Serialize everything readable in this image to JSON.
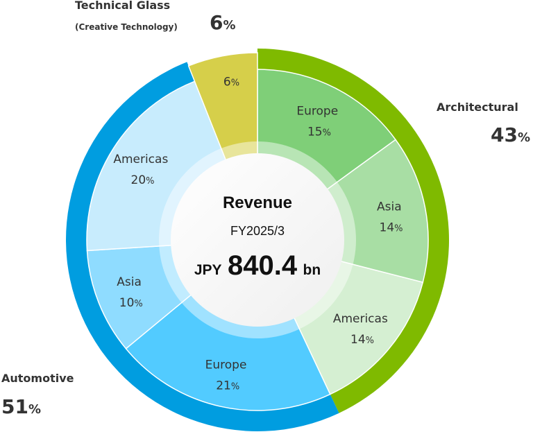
{
  "chart_data": {
    "type": "pie",
    "variant": "nested-donut",
    "center": {
      "title": "Revenue",
      "period": "FY2025/3",
      "currency": "JPY",
      "amount": "840.4",
      "unit": "bn"
    },
    "unit_symbol": "%",
    "groups": [
      {
        "name": "Architectural",
        "value": 43,
        "color": "#7fba00",
        "segments": [
          {
            "name": "Europe",
            "value": 15,
            "color": "#7fcf78"
          },
          {
            "name": "Asia",
            "value": 14,
            "color": "#a8dea4"
          },
          {
            "name": "Americas",
            "value": 14,
            "color": "#d5efd2"
          }
        ]
      },
      {
        "name": "Automotive",
        "value": 51,
        "color": "#009de0",
        "segments": [
          {
            "name": "Europe",
            "value": 21,
            "color": "#52cbff"
          },
          {
            "name": "Asia",
            "value": 10,
            "color": "#8fdcff"
          },
          {
            "name": "Americas",
            "value": 20,
            "color": "#c8ecfd"
          }
        ]
      },
      {
        "name": "Technical Glass",
        "subname": "(Creative Technology)",
        "value": 6,
        "color": "#d6cf4a",
        "segments": [
          {
            "name": "",
            "value": 6,
            "color": "#d6cf4a"
          }
        ]
      }
    ]
  }
}
